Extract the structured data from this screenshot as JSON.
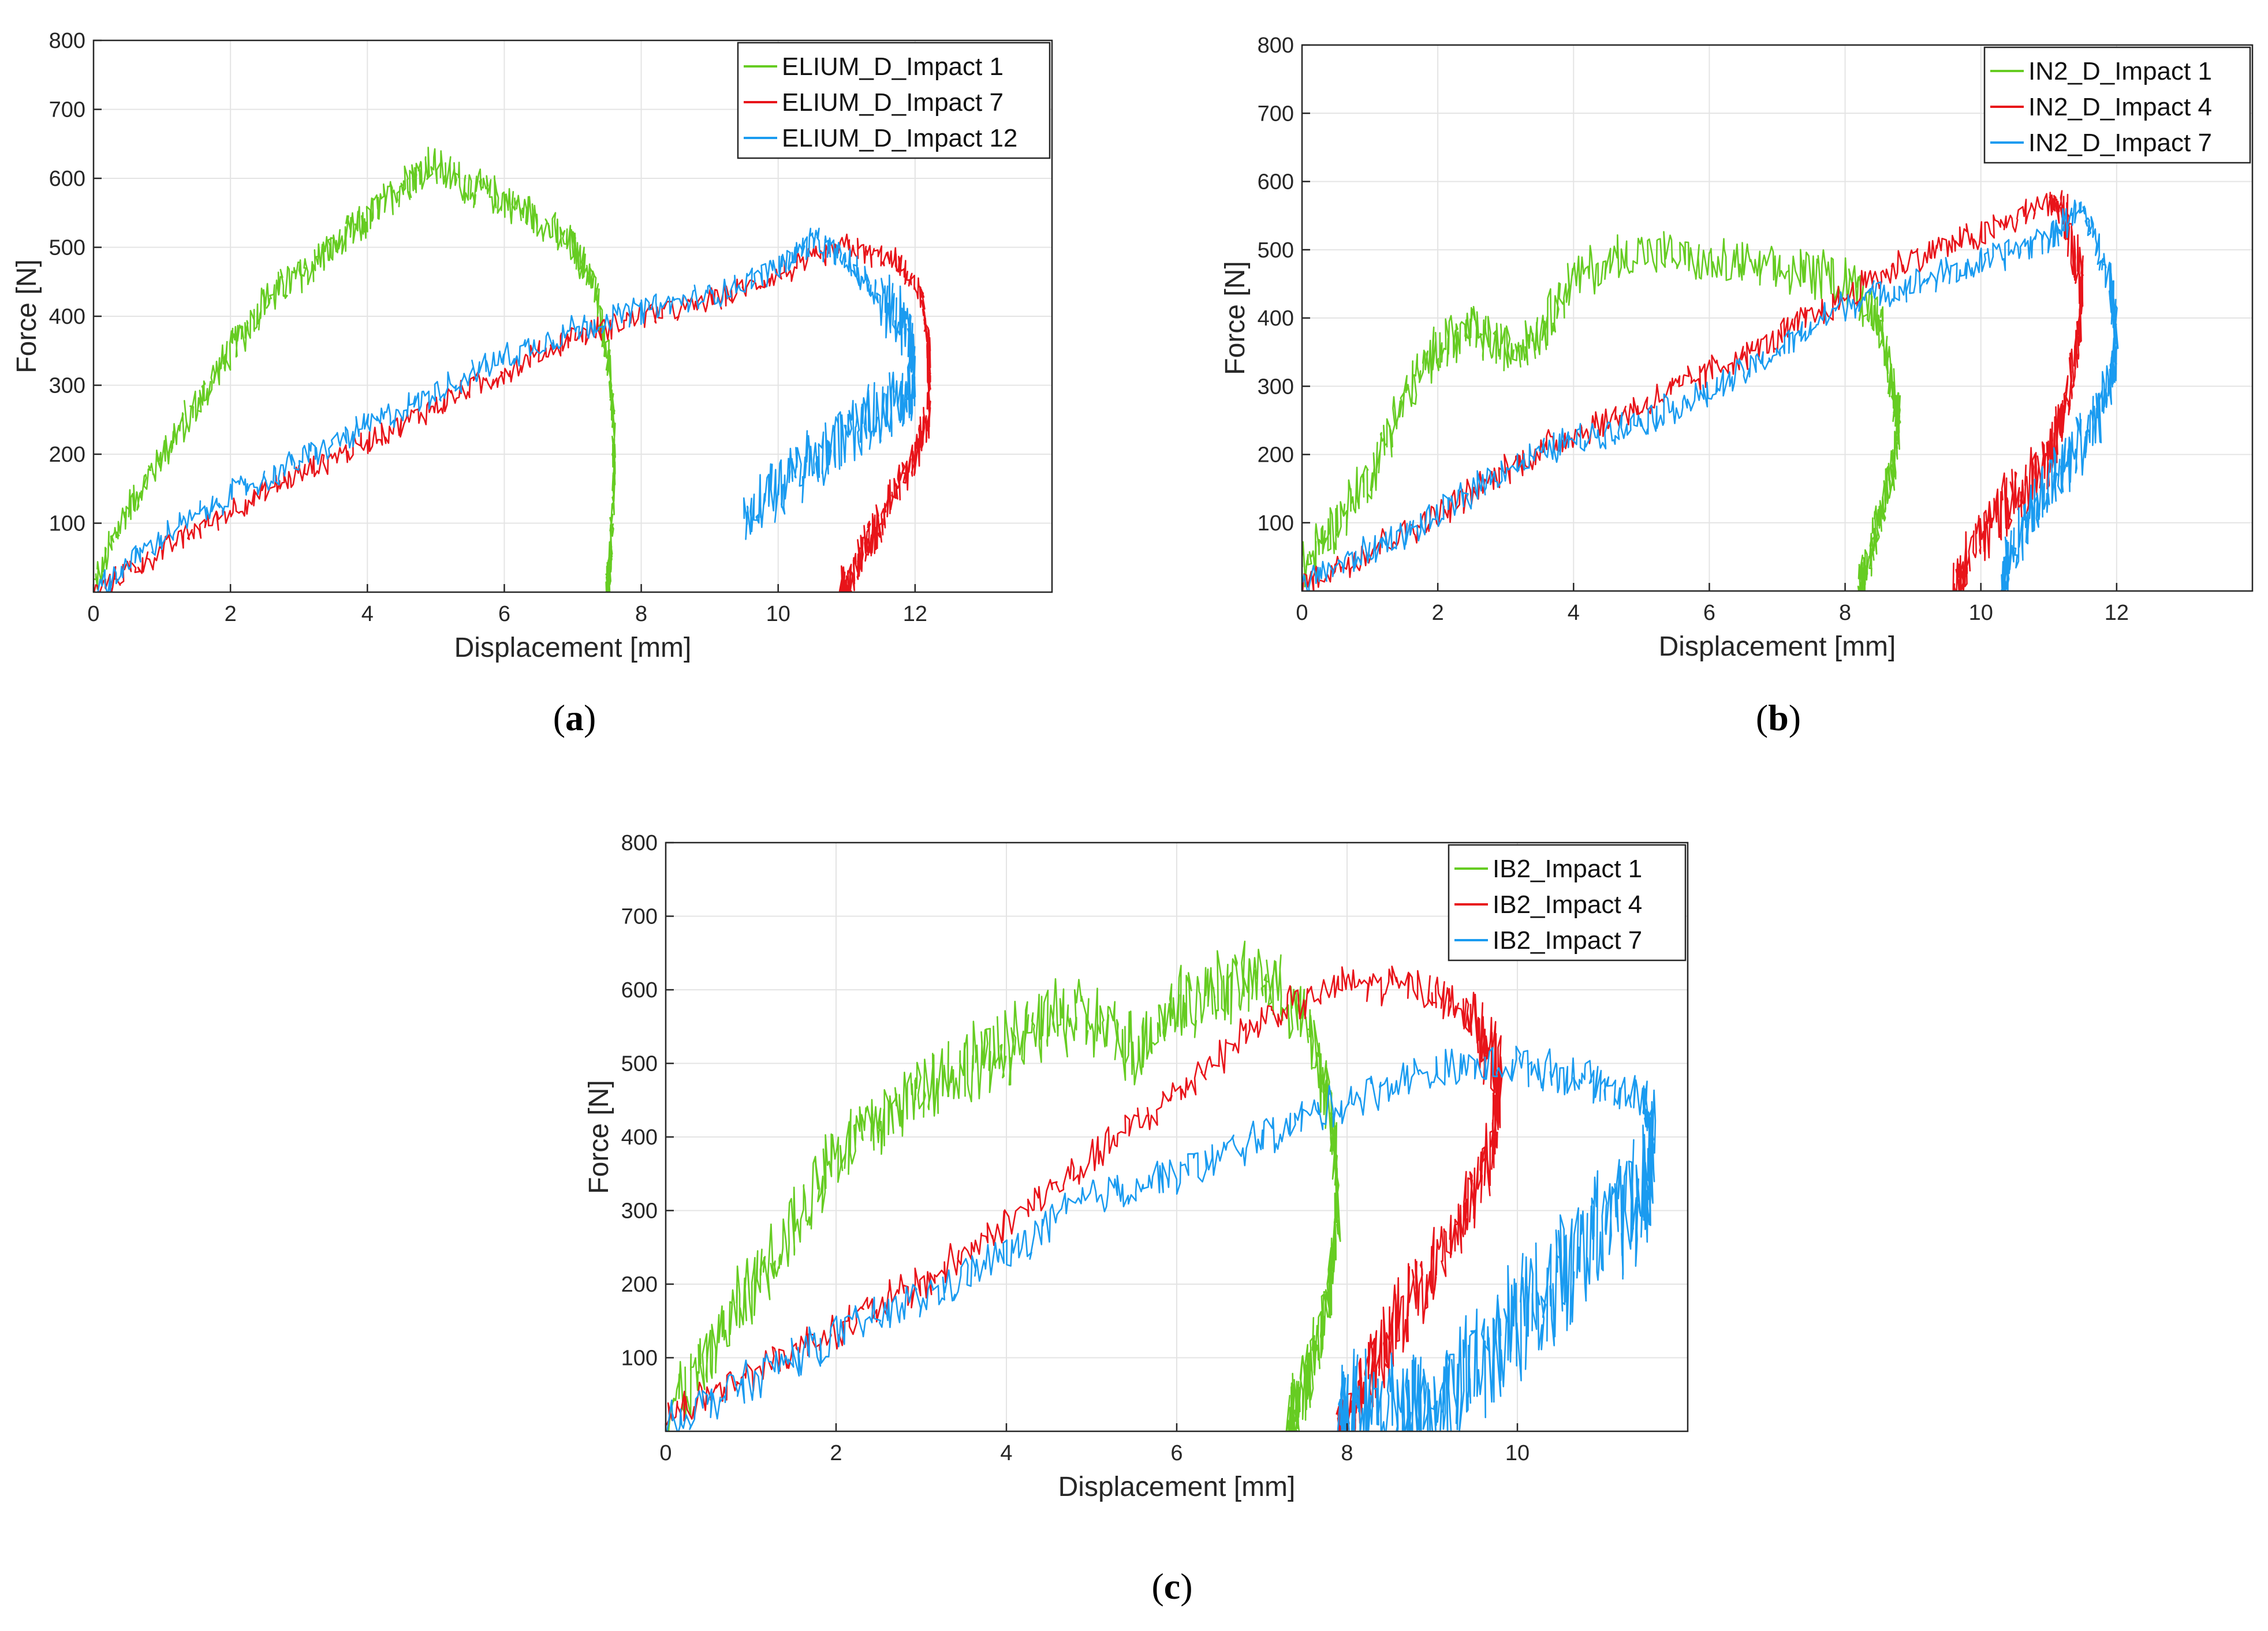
{
  "figure": {
    "panels": [
      "a",
      "b",
      "c"
    ]
  },
  "chart_data": [
    {
      "id": "a",
      "type": "line",
      "caption_letter": "a",
      "caption_open": "(",
      "caption_close": ")",
      "xlabel": "Displacement [mm]",
      "ylabel": "Force [N]",
      "xlim": [
        0,
        14
      ],
      "ylim": [
        0,
        800
      ],
      "xticks": [
        0,
        2,
        4,
        6,
        8,
        10,
        12
      ],
      "yticks": [
        100,
        200,
        300,
        400,
        500,
        600,
        700,
        800
      ],
      "xtick_labels": [
        "0",
        "2",
        "4",
        "6",
        "8",
        "10",
        "12"
      ],
      "ytick_labels": [
        "100",
        "200",
        "300",
        "400",
        "500",
        "600",
        "700",
        "800"
      ],
      "legend_position": "top-right",
      "series": [
        {
          "name": "ELIUM_D_Impact 1",
          "color": "#66cc22",
          "noise": 30,
          "x": [
            0,
            0.5,
            1,
            1.5,
            2,
            2.5,
            3,
            3.5,
            4,
            4.5,
            4.9,
            5.5,
            6,
            6.5,
            7,
            7.3,
            7.5,
            7.6,
            7.6,
            7.55,
            7.5
          ],
          "y": [
            10,
            120,
            200,
            270,
            350,
            420,
            460,
            500,
            540,
            590,
            620,
            590,
            570,
            540,
            500,
            450,
            350,
            250,
            150,
            50,
            0
          ]
        },
        {
          "name": "ELIUM_D_Impact 7",
          "color": "#e8141a",
          "noise": 20,
          "x": [
            0,
            1,
            2,
            3,
            4,
            5,
            6,
            7,
            8,
            9,
            10,
            11,
            11.7,
            12.1,
            12.2,
            12.2,
            12,
            11.7,
            11.4,
            11.2,
            11,
            10.9
          ],
          "y": [
            0,
            60,
            120,
            170,
            220,
            270,
            320,
            370,
            400,
            420,
            460,
            500,
            480,
            430,
            350,
            250,
            200,
            140,
            90,
            50,
            10,
            0
          ],
          "band_from": 14,
          "band_width": 14
        },
        {
          "name": "ELIUM_D_Impact 12",
          "color": "#1a9bf0",
          "noise": 22,
          "x": [
            0,
            1,
            2,
            3,
            4,
            5,
            6,
            7,
            8,
            9,
            10,
            10.5,
            11,
            11.5,
            11.9,
            12,
            11.8,
            11.4,
            11,
            10.5,
            10,
            9.5
          ],
          "y": [
            0,
            80,
            140,
            190,
            240,
            290,
            340,
            380,
            410,
            430,
            470,
            510,
            480,
            430,
            380,
            300,
            280,
            260,
            230,
            190,
            150,
            100
          ],
          "band_from": 13,
          "band_width": 30
        }
      ]
    },
    {
      "id": "b",
      "type": "line",
      "caption_letter": "b",
      "caption_open": "(",
      "caption_close": ")",
      "xlabel": "Displacement [mm]",
      "ylabel": "Force [N]",
      "xlim": [
        0,
        14
      ],
      "ylim": [
        0,
        800
      ],
      "xticks": [
        0,
        2,
        4,
        6,
        8,
        10,
        12
      ],
      "yticks": [
        100,
        200,
        300,
        400,
        500,
        600,
        700,
        800
      ],
      "xtick_labels": [
        "0",
        "2",
        "4",
        "6",
        "8",
        "10",
        "12"
      ],
      "ytick_labels": [
        "100",
        "200",
        "300",
        "400",
        "500",
        "600",
        "700",
        "800"
      ],
      "legend_position": "top-right",
      "series": [
        {
          "name": "IN2_D_Impact 1",
          "color": "#66cc22",
          "noise": 40,
          "x": [
            0,
            0.5,
            1,
            1.5,
            2,
            2.5,
            3,
            3.5,
            4,
            5,
            6,
            7,
            8,
            8.5,
            8.7,
            8.8,
            8.7,
            8.5,
            8.3,
            8.2
          ],
          "y": [
            30,
            100,
            170,
            280,
            360,
            380,
            350,
            380,
            460,
            500,
            480,
            470,
            460,
            400,
            300,
            250,
            180,
            100,
            30,
            0
          ]
        },
        {
          "name": "IN2_D_Impact 4",
          "color": "#e8141a",
          "noise": 25,
          "x": [
            0,
            1,
            2,
            3,
            4,
            5,
            6,
            7,
            8,
            9,
            10,
            11,
            11.2,
            11.5,
            11.4,
            11.2,
            11,
            10.6,
            10.2,
            9.8,
            9.6
          ],
          "y": [
            10,
            60,
            110,
            180,
            230,
            270,
            320,
            370,
            430,
            490,
            520,
            570,
            560,
            450,
            350,
            250,
            190,
            150,
            110,
            50,
            0
          ],
          "band_from": 12,
          "band_width": 24
        },
        {
          "name": "IN2_D_Impact 7",
          "color": "#1a9bf0",
          "noise": 25,
          "x": [
            0,
            1,
            2,
            3,
            4,
            5,
            6,
            7,
            8,
            9,
            10,
            11,
            11.5,
            11.9,
            12,
            11.9,
            11.6,
            11.2,
            10.8,
            10.4,
            10.3
          ],
          "y": [
            10,
            60,
            110,
            180,
            220,
            250,
            290,
            350,
            420,
            450,
            480,
            520,
            560,
            460,
            380,
            300,
            230,
            180,
            120,
            50,
            0
          ],
          "band_from": 13,
          "band_width": 24
        }
      ]
    },
    {
      "id": "c",
      "type": "line",
      "caption_letter": "c",
      "caption_open": "(",
      "caption_close": ")",
      "xlabel": "Displacement [mm]",
      "ylabel": "Force [N]",
      "xlim": [
        0,
        12
      ],
      "ylim": [
        0,
        800
      ],
      "xticks": [
        0,
        2,
        4,
        6,
        8,
        10
      ],
      "yticks": [
        100,
        200,
        300,
        400,
        500,
        600,
        700,
        800
      ],
      "xtick_labels": [
        "0",
        "2",
        "4",
        "6",
        "8",
        "10"
      ],
      "ytick_labels": [
        "100",
        "200",
        "300",
        "400",
        "500",
        "600",
        "700",
        "800"
      ],
      "legend_position": "top-right",
      "series": [
        {
          "name": "IB2_Impact 1",
          "color": "#66cc22",
          "noise": 55,
          "x": [
            0,
            0.5,
            1,
            1.5,
            2,
            2.5,
            3,
            3.5,
            4,
            4.5,
            5,
            5.5,
            6,
            6.5,
            7,
            7.5,
            7.8,
            7.9,
            7.8,
            7.6,
            7.4,
            7.3
          ],
          "y": [
            30,
            100,
            200,
            280,
            380,
            420,
            470,
            500,
            520,
            560,
            560,
            520,
            580,
            600,
            620,
            560,
            450,
            300,
            200,
            100,
            30,
            0
          ]
        },
        {
          "name": "IB2_Impact 4",
          "color": "#e8141a",
          "noise": 28,
          "x": [
            0,
            1,
            2,
            3,
            4,
            5,
            6,
            7,
            8,
            9,
            9.5,
            9.8,
            9.7,
            9.4,
            9,
            8.6,
            8.3,
            8,
            7.9
          ],
          "y": [
            20,
            80,
            140,
            200,
            280,
            370,
            460,
            560,
            610,
            600,
            560,
            480,
            380,
            300,
            220,
            150,
            90,
            20,
            0
          ],
          "band_from": 10,
          "band_width": 30
        },
        {
          "name": "IB2_Impact 7",
          "color": "#1a9bf0",
          "noise": 30,
          "x": [
            0,
            1,
            2,
            3,
            4,
            5,
            6,
            7,
            8,
            9,
            10,
            10.8,
            11.5,
            11.6,
            11.5,
            11.2,
            10.8,
            10.4,
            10,
            9.6,
            9.2,
            8.9,
            8.7,
            8.3,
            8,
            7.9
          ],
          "y": [
            10,
            70,
            130,
            180,
            240,
            320,
            350,
            400,
            450,
            490,
            500,
            480,
            450,
            400,
            330,
            290,
            250,
            200,
            150,
            100,
            50,
            10,
            30,
            30,
            20,
            0
          ],
          "band_from": 13,
          "band_width": 60
        }
      ]
    }
  ]
}
